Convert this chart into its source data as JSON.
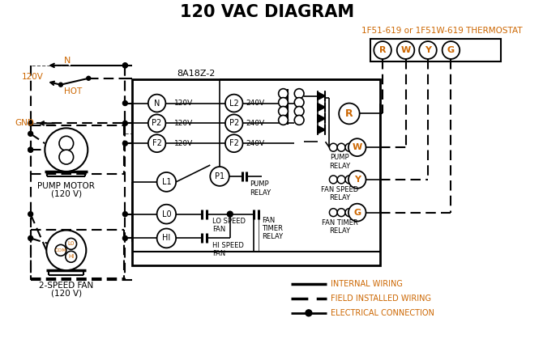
{
  "title": "120 VAC DIAGRAM",
  "bg_color": "#ffffff",
  "line_color": "#000000",
  "orange_color": "#cc6600",
  "thermostat_label": "1F51-619 or 1F51W-619 THERMOSTAT",
  "controller_label": "8A18Z-2",
  "terminals_therm": [
    "R",
    "W",
    "Y",
    "G"
  ],
  "left_terminals": [
    "N",
    "P2",
    "F2"
  ],
  "left_voltages": [
    "120V",
    "120V",
    "120V"
  ],
  "right_terminals": [
    "L2",
    "P2",
    "F2"
  ],
  "right_voltages": [
    "240V",
    "240V",
    "240V"
  ],
  "pump_motor_label1": "PUMP MOTOR",
  "pump_motor_label2": "(120 V)",
  "fan_label1": "2-SPEED FAN",
  "fan_label2": "(120 V)",
  "gnd_label": "GND",
  "hot_label": "HOT",
  "n_label": "N",
  "v120_label": "120V",
  "legend_items": [
    "INTERNAL WIRING",
    "FIELD INSTALLED WIRING",
    "ELECTRICAL CONNECTION"
  ],
  "com_label": "COM",
  "lo_fan_label": "LO",
  "hi_fan_label": "HI",
  "relay_R_label": "R",
  "relay_W_label": "W",
  "relay_Y_label": "Y",
  "relay_G_label": "G",
  "pump_relay_text": "PUMP\nRELAY",
  "fan_speed_relay_text": "FAN SPEED\nRELAY",
  "fan_timer_relay_text": "FAN TIMER\nRELAY",
  "l1_label": "L1",
  "p1_label": "P1",
  "lo_label": "L0",
  "hi_label": "HI",
  "pump_relay_sw": "PUMP\nRELAY",
  "lo_speed_fan": "LO SPEED\nFAN",
  "hi_speed_fan": "HI SPEED\nFAN",
  "fan_timer_relay_sw": "FAN\nTIMER\nRELAY"
}
